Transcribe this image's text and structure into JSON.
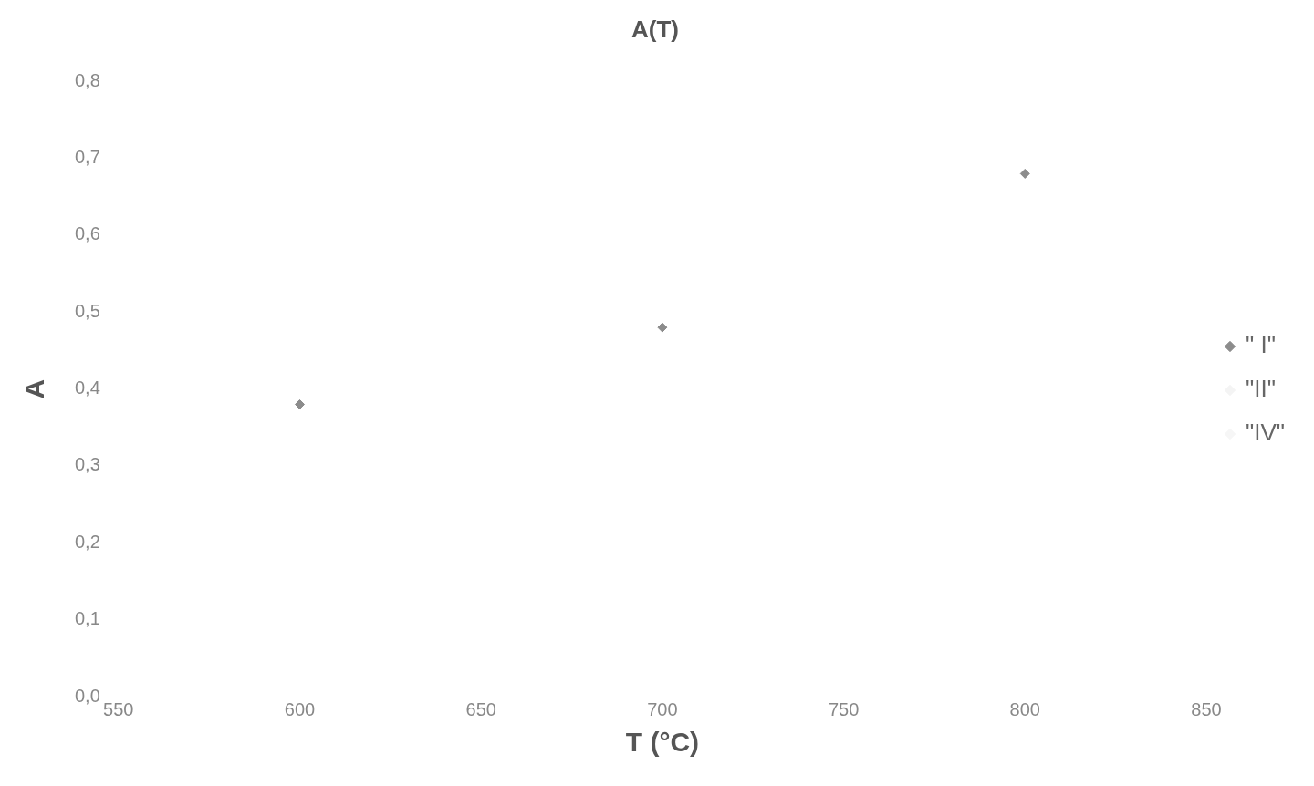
{
  "chart_data": {
    "type": "scatter",
    "title": "A(T)",
    "xlabel": "T (°C)",
    "ylabel": "A",
    "x": [
      600,
      700,
      800
    ],
    "series": [
      {
        "name": "\" I\"",
        "color": "#8c8c8c",
        "values": [
          0.38,
          0.48,
          0.68
        ]
      },
      {
        "name": "\"II\"",
        "color": "#f4f4f4",
        "values": [
          null,
          null,
          null
        ]
      },
      {
        "name": "\"IV\"",
        "color": "#f6f6f6",
        "values": [
          null,
          null,
          null
        ]
      }
    ],
    "xlim": [
      550,
      850
    ],
    "xticks": [
      550,
      600,
      650,
      700,
      750,
      800,
      850
    ],
    "ylim": [
      0,
      0.8
    ],
    "yticks": [
      {
        "value": 0,
        "label": "0,0"
      },
      {
        "value": 0.1,
        "label": "0,1"
      },
      {
        "value": 0.2,
        "label": "0,2"
      },
      {
        "value": 0.3,
        "label": "0,3"
      },
      {
        "value": 0.4,
        "label": "0,4"
      },
      {
        "value": 0.5,
        "label": "0,5"
      },
      {
        "value": 0.6,
        "label": "0,6"
      },
      {
        "value": 0.7,
        "label": "0,7"
      },
      {
        "value": 0.8,
        "label": "0,8"
      }
    ],
    "grid": false,
    "legend": "right",
    "marker": "diamond"
  }
}
